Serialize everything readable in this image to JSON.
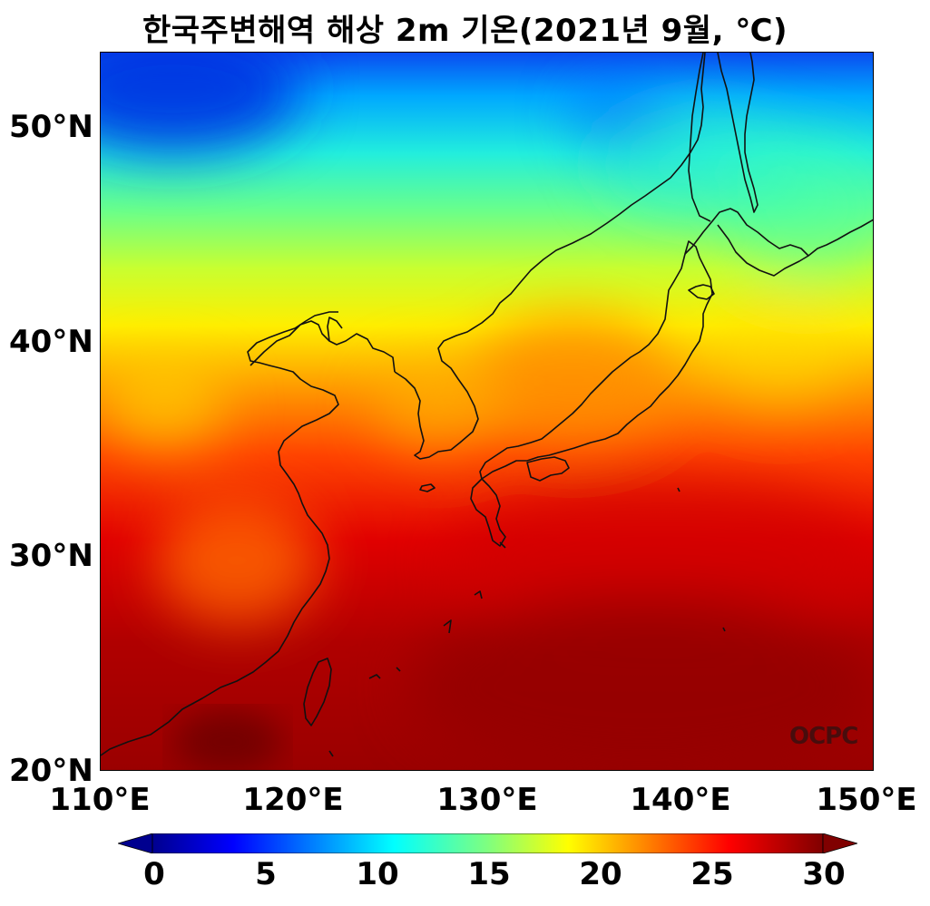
{
  "title": "한국주변해역 해상 2m 기온(2021년 9월, ℃)",
  "watermark": "OCPC",
  "axes": {
    "lat_ticks": [
      "50°N",
      "40°N",
      "30°N",
      "20°N"
    ],
    "lon_ticks": [
      "110°E",
      "120°E",
      "130°E",
      "140°E",
      "150°E"
    ]
  },
  "colorbar": {
    "ticks": [
      "0",
      "5",
      "10",
      "15",
      "20",
      "25",
      "30"
    ],
    "colormap": "jet",
    "extend": "both"
  },
  "chart_data": {
    "type": "heatmap",
    "title": "한국주변해역 해상 2m 기온(2021년 9월, ℃)",
    "variable": "2m air temperature",
    "units": "℃",
    "xlim": [
      110,
      150
    ],
    "ylim": [
      20,
      53.5
    ],
    "vmin": 0,
    "vmax": 30,
    "colors": {
      "low": "#00008b",
      "mid": "#7fff7f",
      "high": "#8b0000"
    }
  }
}
